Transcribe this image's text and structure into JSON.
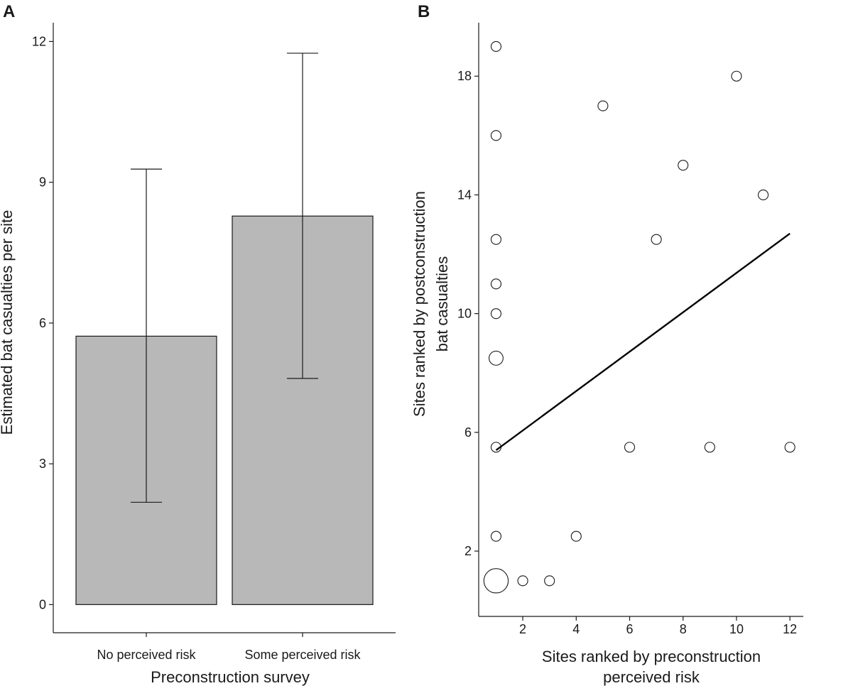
{
  "chart_data": [
    {
      "panel": "A",
      "type": "bar",
      "xlabel": "Preconstruction survey",
      "ylabel": "Estimated bat casualties per site",
      "ylim": [
        -0.6,
        12.4
      ],
      "yticks": [
        0,
        3,
        6,
        9,
        12
      ],
      "categories": [
        "No perceived risk",
        "Some perceived risk"
      ],
      "values": [
        5.72,
        8.28
      ],
      "error_low": [
        2.18,
        4.82
      ],
      "error_high": [
        9.28,
        11.75
      ],
      "bar_color": "#b8b8b8"
    },
    {
      "panel": "B",
      "type": "scatter",
      "xlabel_lines": [
        "Sites ranked by preconstruction",
        "perceived risk"
      ],
      "ylabel_lines": [
        "Sites ranked by postconstruction",
        "bat casualties"
      ],
      "xlim": [
        0.35,
        12.5
      ],
      "ylim": [
        -0.2,
        19.8
      ],
      "xticks": [
        2,
        4,
        6,
        8,
        10,
        12
      ],
      "yticks": [
        2,
        6,
        10,
        14,
        18
      ],
      "points": [
        {
          "x": 1,
          "y": 19,
          "n": 1
        },
        {
          "x": 1,
          "y": 16,
          "n": 1
        },
        {
          "x": 1,
          "y": 12.5,
          "n": 1
        },
        {
          "x": 1,
          "y": 11,
          "n": 1
        },
        {
          "x": 1,
          "y": 10,
          "n": 1
        },
        {
          "x": 1,
          "y": 8.5,
          "n": 2
        },
        {
          "x": 1,
          "y": 5.5,
          "n": 1
        },
        {
          "x": 1,
          "y": 2.5,
          "n": 1
        },
        {
          "x": 1,
          "y": 1,
          "n": 6
        },
        {
          "x": 2,
          "y": 1,
          "n": 1
        },
        {
          "x": 3,
          "y": 1,
          "n": 1
        },
        {
          "x": 4,
          "y": 2.5,
          "n": 1
        },
        {
          "x": 5,
          "y": 17,
          "n": 1
        },
        {
          "x": 6,
          "y": 5.5,
          "n": 1
        },
        {
          "x": 7,
          "y": 12.5,
          "n": 1
        },
        {
          "x": 8,
          "y": 15,
          "n": 1
        },
        {
          "x": 9,
          "y": 5.5,
          "n": 1
        },
        {
          "x": 10,
          "y": 18,
          "n": 1
        },
        {
          "x": 11,
          "y": 14,
          "n": 1
        },
        {
          "x": 12,
          "y": 5.5,
          "n": 1
        }
      ],
      "trend_line": {
        "x": [
          1,
          12
        ],
        "y": [
          5.4,
          12.7
        ]
      }
    }
  ]
}
